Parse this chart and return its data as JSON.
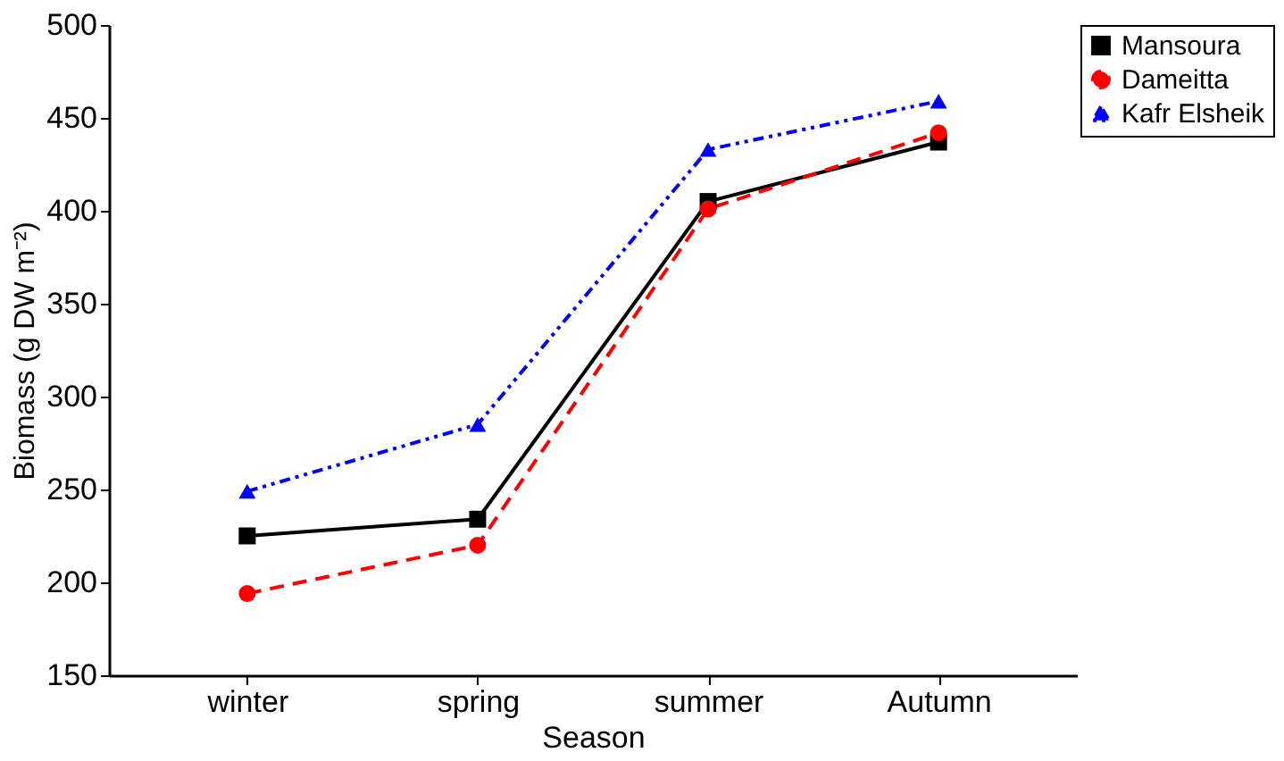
{
  "chart_data": {
    "type": "line",
    "xlabel": "Season",
    "ylabel": "Biomass (g DW m⁻²)",
    "categories": [
      "winter",
      "spring",
      "summer",
      "Autumn"
    ],
    "series": [
      {
        "name": "Mansoura",
        "color": "#000000",
        "marker": "square",
        "line_style": "solid",
        "values": [
          225,
          234,
          405,
          437
        ]
      },
      {
        "name": "Dameitta",
        "color": "#ff0000",
        "marker": "circle",
        "line_style": "dashed",
        "values": [
          194,
          220,
          401,
          442
        ]
      },
      {
        "name": "Kafr Elsheik",
        "color": "#0000ff",
        "marker": "triangle",
        "line_style": "dotted",
        "values": [
          249,
          285,
          433,
          459
        ]
      }
    ],
    "ylim": [
      150,
      500
    ],
    "yticks": [
      150,
      200,
      250,
      300,
      350,
      400,
      450,
      500
    ],
    "grid": false,
    "legend": "top right"
  }
}
